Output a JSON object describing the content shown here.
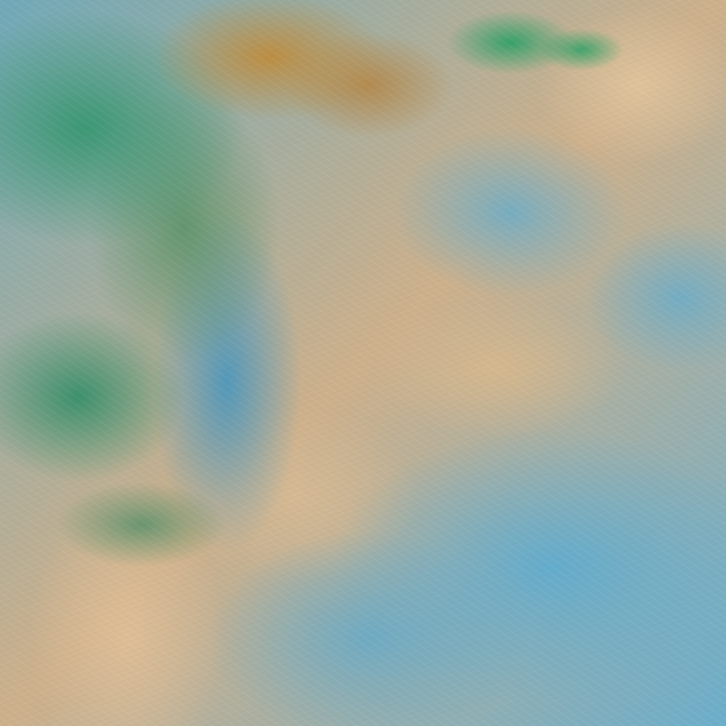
{
  "image": {
    "kind": "false-color satellite imagery",
    "colors": {
      "clear_surface": "#cfb48e",
      "cloud_blue": "#60acce",
      "vegetation_green": "#32966e",
      "terrain_orange": "#be8c3c"
    }
  }
}
